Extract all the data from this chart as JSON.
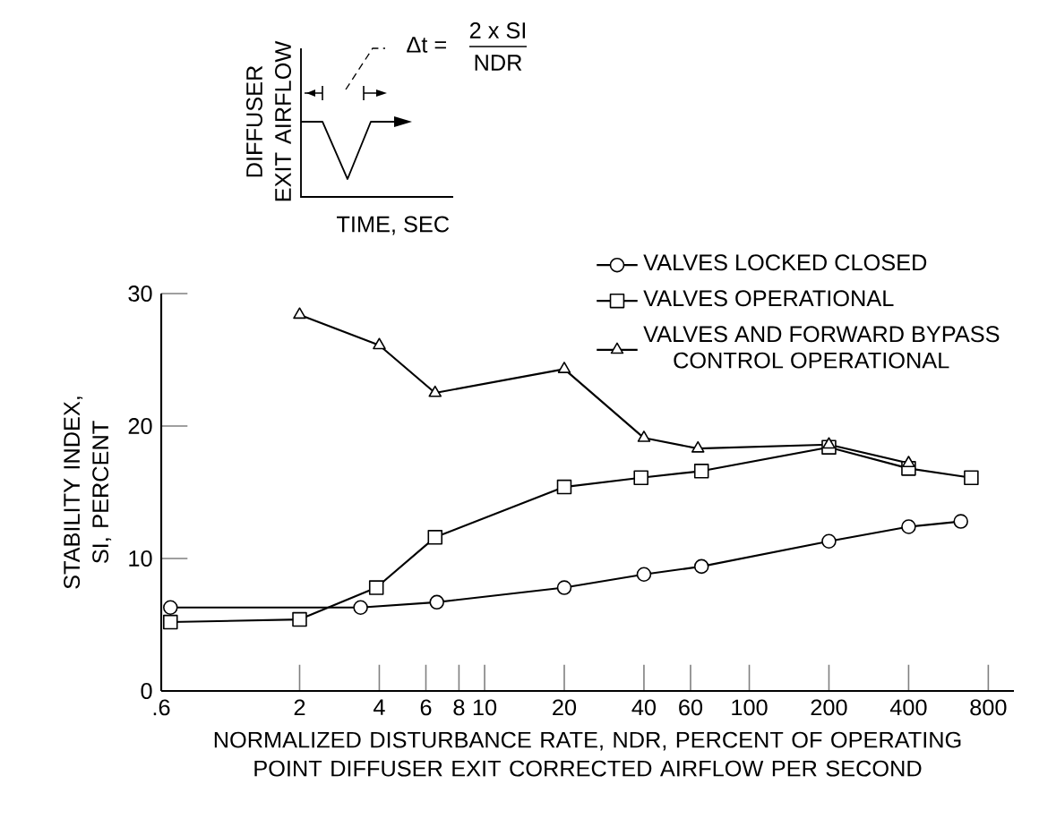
{
  "chart_data": {
    "type": "line",
    "xlabel": "NORMALIZED DISTURBANCE RATE, NDR, PERCENT OF OPERATING POINT DIFFUSER EXIT CORRECTED AIRFLOW PER SECOND",
    "ylabel": "STABILITY INDEX, SI, PERCENT",
    "log": "x",
    "xlim": [
      0.6,
      1000
    ],
    "ylim": [
      0,
      30
    ],
    "xticks": [
      {
        "value": 0.6,
        "label": ".6"
      },
      2,
      4,
      6,
      8,
      10,
      20,
      40,
      60,
      100,
      200,
      400,
      800
    ],
    "yticks": [
      0,
      10,
      20,
      30
    ],
    "grid": false,
    "legend": "top right",
    "line_style": "solid",
    "annotations": [
      "DIFFUSER EXIT AIRFLOW",
      "TIME, SEC",
      "Δt =",
      "2 x SI",
      "NDR"
    ],
    "series": [
      {
        "name": "VALVES LOCKED CLOSED",
        "color": "#000000",
        "marker": "circle",
        "x": [
          0.65,
          3.4,
          6.6,
          20,
          40,
          66,
          200,
          400,
          630
        ],
        "values": [
          6.3,
          6.3,
          6.7,
          7.8,
          8.8,
          9.4,
          11.3,
          12.4,
          12.8
        ]
      },
      {
        "name": "VALVES OPERATIONAL",
        "color": "#000000",
        "marker": "square",
        "x": [
          0.65,
          2,
          3.9,
          6.5,
          20,
          39,
          66,
          200,
          400,
          690
        ],
        "values": [
          5.2,
          5.4,
          7.8,
          11.6,
          15.4,
          16.1,
          16.6,
          18.4,
          16.8,
          16.1
        ]
      },
      {
        "name": "VALVES AND FORWARD BYPASS CONTROL OPERATIONAL",
        "color": "#000000",
        "marker": "triangle",
        "x": [
          2,
          4,
          6.5,
          20,
          40,
          64,
          200,
          400
        ],
        "values": [
          28.4,
          26.1,
          22.5,
          24.3,
          19.1,
          18.3,
          18.6,
          17.2
        ]
      }
    ]
  }
}
